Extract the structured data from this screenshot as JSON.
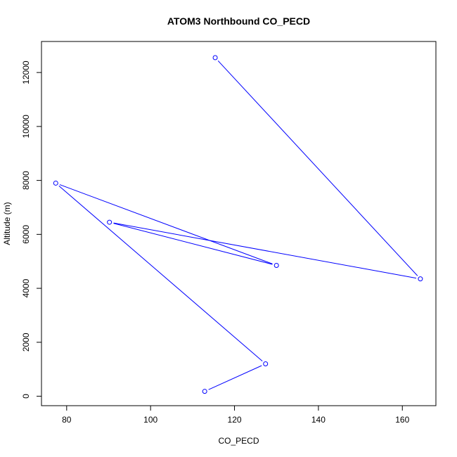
{
  "chart_data": {
    "type": "line",
    "title": "ATOM3 Northbound CO_PECD",
    "xlabel": "CO_PECD",
    "ylabel": "Altitude (m)",
    "xlim": [
      74,
      168
    ],
    "ylim": [
      -350,
      13150
    ],
    "x_ticks": [
      80,
      100,
      120,
      140,
      160
    ],
    "y_ticks": [
      0,
      2000,
      4000,
      6000,
      8000,
      10000,
      12000
    ],
    "grid": false,
    "series": [
      {
        "color": "#0000ff",
        "markers": "open-circle",
        "points": [
          {
            "x": 115.4,
            "y": 12550
          },
          {
            "x": 164.3,
            "y": 4350
          },
          {
            "x": 90.2,
            "y": 6450
          },
          {
            "x": 130.0,
            "y": 4850
          },
          {
            "x": 77.4,
            "y": 7900
          },
          {
            "x": 127.4,
            "y": 1200
          },
          {
            "x": 112.9,
            "y": 180
          }
        ]
      }
    ]
  }
}
